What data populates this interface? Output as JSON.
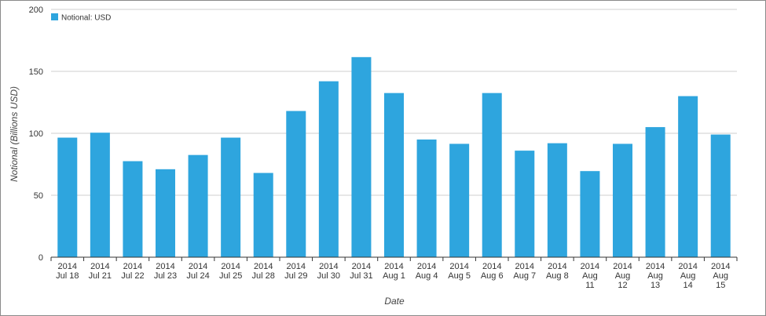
{
  "chart_data": {
    "type": "bar",
    "legend": {
      "label": "Notional: USD",
      "position": "top-left"
    },
    "xlabel": "Date",
    "ylabel": "Notional (Billions USD)",
    "ylim": [
      0,
      200
    ],
    "yticks": [
      0,
      50,
      100,
      150,
      200
    ],
    "grid": true,
    "bar_color": "#2EA5DE",
    "categories": [
      [
        "2014",
        "Jul 18"
      ],
      [
        "2014",
        "Jul 21"
      ],
      [
        "2014",
        "Jul 22"
      ],
      [
        "2014",
        "Jul 23"
      ],
      [
        "2014",
        "Jul 24"
      ],
      [
        "2014",
        "Jul 25"
      ],
      [
        "2014",
        "Jul 28"
      ],
      [
        "2014",
        "Jul 29"
      ],
      [
        "2014",
        "Jul 30"
      ],
      [
        "2014",
        "Jul 31"
      ],
      [
        "2014",
        "Aug 1"
      ],
      [
        "2014",
        "Aug 4"
      ],
      [
        "2014",
        "Aug 5"
      ],
      [
        "2014",
        "Aug 6"
      ],
      [
        "2014",
        "Aug 7"
      ],
      [
        "2014",
        "Aug 8"
      ],
      [
        "2014",
        "Aug",
        "11"
      ],
      [
        "2014",
        "Aug",
        "12"
      ],
      [
        "2014",
        "Aug",
        "13"
      ],
      [
        "2014",
        "Aug",
        "14"
      ],
      [
        "2014",
        "Aug",
        "15"
      ]
    ],
    "series": [
      {
        "name": "Notional: USD",
        "values": [
          96.5,
          100.5,
          77.5,
          71,
          82.5,
          96.5,
          68,
          118,
          142,
          161.5,
          132.5,
          95,
          91.5,
          132.5,
          86,
          92,
          69.5,
          91.5,
          105,
          130,
          99
        ]
      }
    ]
  }
}
